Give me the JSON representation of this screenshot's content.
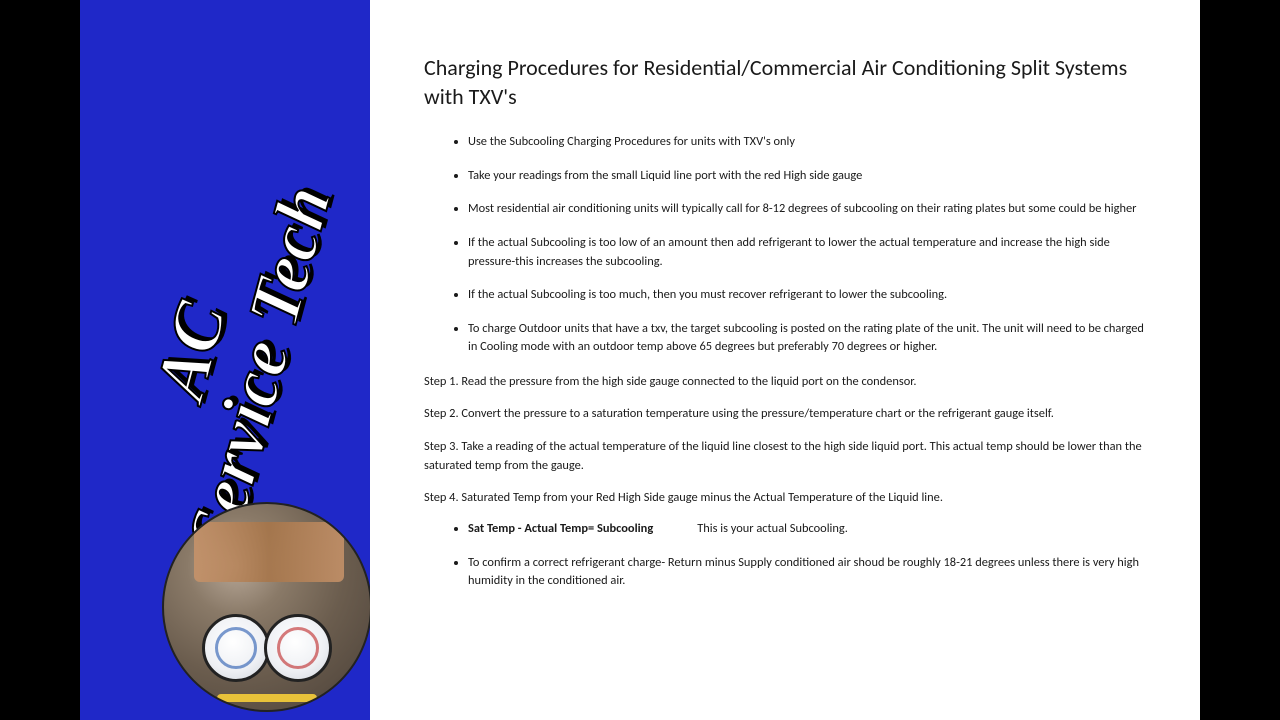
{
  "sidebar": {
    "brand_line1": "AC",
    "brand_line2": "Service Tech",
    "bg_color": "#1f28c8"
  },
  "document": {
    "title": "Charging Procedures for Residential/Commercial Air Conditioning Split Systems with TXV's",
    "bullets_top": [
      "Use the Subcooling Charging Procedures for units with TXV's only",
      "Take your readings from the small Liquid line port with the red High side gauge",
      "Most residential air conditioning units will typically call for 8-12 degrees of subcooling on their rating plates but some could be higher",
      "If the actual Subcooling is too low of an amount then add refrigerant to lower the actual temperature and increase the high side pressure-this increases the subcooling.",
      "If the actual Subcooling is too much, then you must recover refrigerant to lower the subcooling.",
      "To charge Outdoor units that have a txv, the target subcooling is posted on the rating plate of the unit. The unit will need to be charged in Cooling mode with an outdoor temp above 65 degrees but preferably 70 degrees or higher."
    ],
    "steps": [
      "Step 1. Read the pressure from the high side gauge connected to the liquid port on the condensor.",
      "Step 2. Convert the pressure to a saturation temperature using the pressure/temperature chart or the refrigerant gauge itself.",
      "Step 3. Take a reading of the actual temperature of the liquid line closest to the high side liquid port. This actual temp should be lower than the saturated temp from the gauge.",
      "Step 4. Saturated Temp from your Red High Side gauge minus the Actual Temperature of the Liquid line."
    ],
    "formula": "Sat Temp - Actual Temp= Subcooling",
    "formula_note": "This is your actual Subcooling.",
    "bullets_bottom": [
      "To confirm a correct refrigerant charge- Return minus Supply conditioned air shoud be roughly 18-21 degrees unless there is very high humidity in the conditioned air."
    ],
    "text_color": "#1a1a1a",
    "bg_color": "#ffffff",
    "title_fontsize": 22,
    "body_fontsize": 12.4
  }
}
